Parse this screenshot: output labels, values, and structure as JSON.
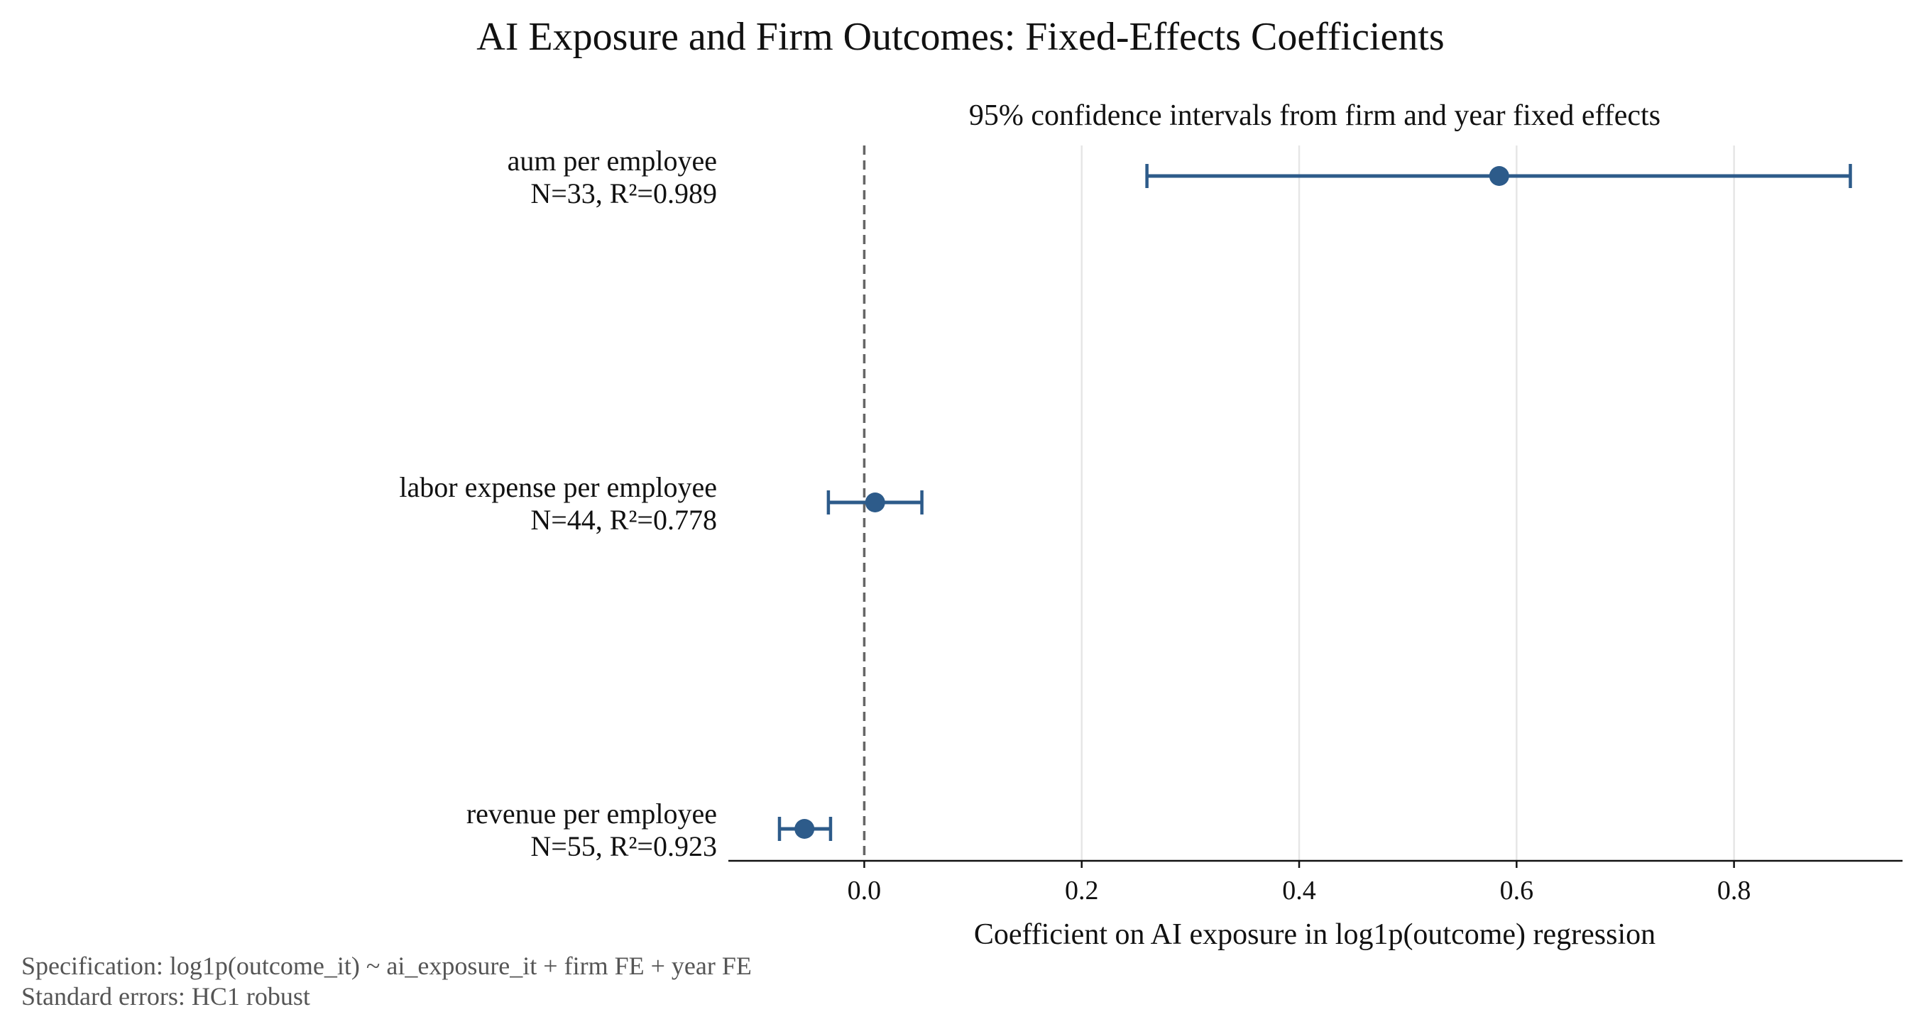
{
  "chart_data": {
    "type": "errorbar",
    "title": "AI Exposure and Firm Outcomes: Fixed-Effects Coefficients",
    "subtitle": "95% confidence intervals from firm and year fixed effects",
    "xlabel": "Coefficient on AI exposure in log1p(outcome) regression",
    "ylabel": "",
    "xlim": [
      -0.125,
      0.955
    ],
    "xticks": [
      0.0,
      0.2,
      0.4,
      0.6,
      0.8
    ],
    "xtick_labels": [
      "0.0",
      "0.2",
      "0.4",
      "0.6",
      "0.8"
    ],
    "grid": "vertical",
    "reference_line": 0.0,
    "series_color": "#2d5b8a",
    "points": [
      {
        "label": "aum per employee",
        "stats": "N=33, R²=0.989",
        "coef": 0.584,
        "ci_low": 0.26,
        "ci_high": 0.907
      },
      {
        "label": "labor expense per employee",
        "stats": "N=44, R²=0.778",
        "coef": 0.01,
        "ci_low": -0.033,
        "ci_high": 0.053
      },
      {
        "label": "revenue per employee",
        "stats": "N=55, R²=0.923",
        "coef": -0.055,
        "ci_low": -0.078,
        "ci_high": -0.031
      }
    ]
  },
  "footnotes": {
    "spec": "Specification: log1p(outcome_it) ~ ai_exposure_it + firm FE + year FE",
    "se": "Standard errors: HC1 robust"
  }
}
